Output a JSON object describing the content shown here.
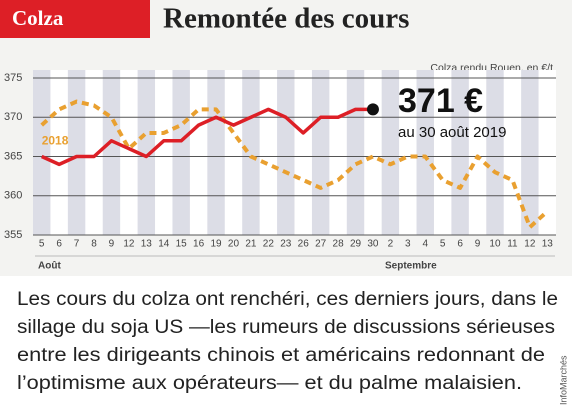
{
  "chart_data": {
    "type": "line",
    "header": "Colza",
    "title": "Remontée des cours",
    "subtitle": "Colza rendu Rouen, en €/t",
    "categories": [
      "5",
      "6",
      "7",
      "8",
      "9",
      "12",
      "13",
      "14",
      "15",
      "16",
      "19",
      "20",
      "21",
      "22",
      "23",
      "26",
      "27",
      "28",
      "29",
      "30",
      "2",
      "3",
      "4",
      "5",
      "6",
      "9",
      "10",
      "11",
      "12",
      "13"
    ],
    "months": [
      "Août",
      "Septembre"
    ],
    "series": [
      {
        "color": "#dd1f26",
        "dashed": false,
        "end_marker": true,
        "values": [
          365,
          364,
          365,
          365,
          367,
          366,
          365,
          367,
          367,
          369,
          370,
          369,
          370,
          371,
          370,
          368,
          370,
          370,
          371,
          371,
          null,
          null,
          null,
          null,
          null,
          null,
          null,
          null,
          null,
          null
        ]
      },
      {
        "name": "2018",
        "color": "#e9a030",
        "dashed": true,
        "end_marker": false,
        "values": [
          369,
          371,
          372,
          371.5,
          370,
          366,
          368,
          368,
          369,
          371,
          371,
          368,
          365,
          364,
          363,
          362,
          361,
          362,
          364,
          365,
          364,
          365,
          365,
          362,
          361,
          365,
          363,
          362,
          356,
          358
        ]
      }
    ],
    "callout_value": "371 €",
    "callout_text": "au 30 août 2019",
    "ylim": [
      355,
      375
    ],
    "yticks": [
      355,
      360,
      365,
      370,
      375
    ],
    "grid": true,
    "body": [
      "Les cours du colza ont renchéri, ces derniers jours, dans le",
      "sillage du soja US —les rumeurs de discussions sérieuses",
      "entre les dirigeants chinois et américains redonnant de",
      "l’optimisme aux opérateurs— et du palme malaisien."
    ],
    "source": "InfoMarchés"
  }
}
